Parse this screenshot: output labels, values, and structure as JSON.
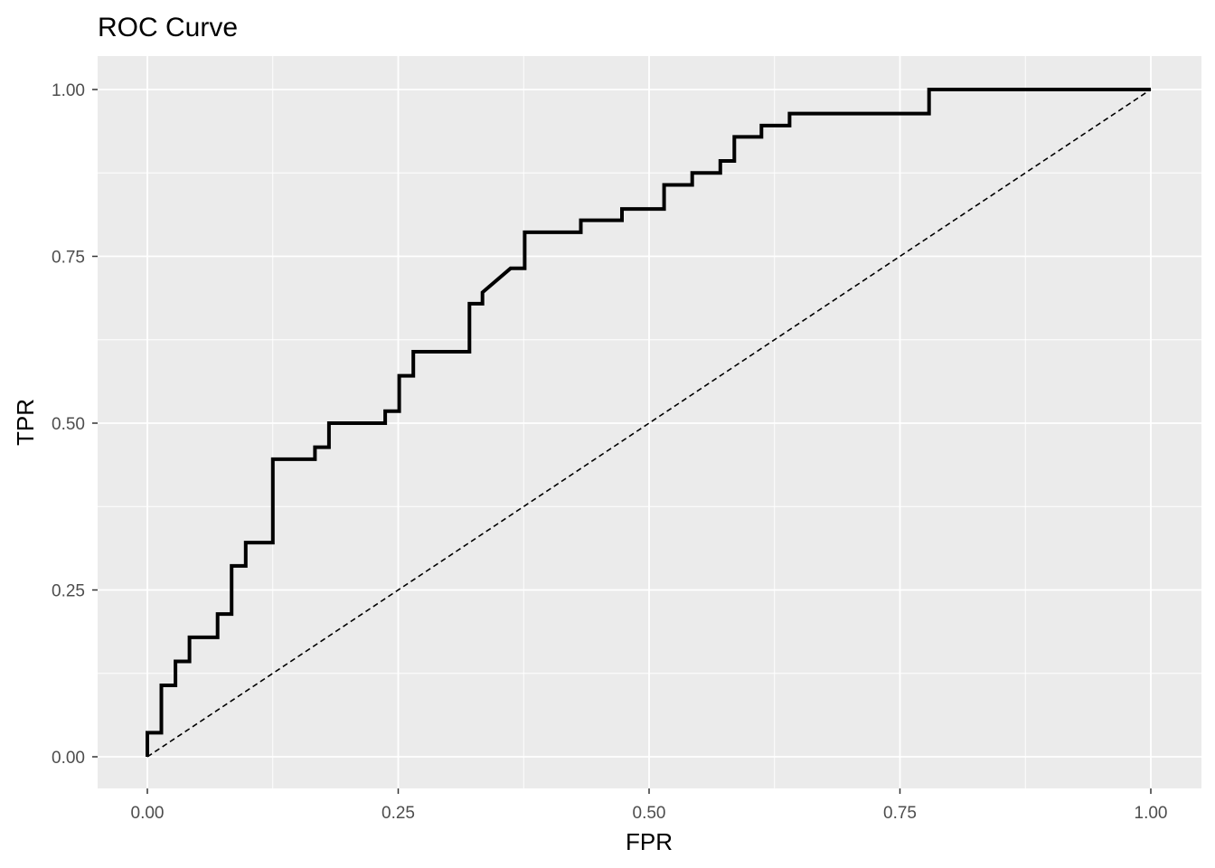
{
  "chart_data": {
    "type": "line",
    "title": "ROC Curve",
    "xlabel": "FPR",
    "ylabel": "TPR",
    "xlim": [
      0,
      1
    ],
    "ylim": [
      0,
      1
    ],
    "x_ticks": [
      0,
      0.25,
      0.5,
      0.75,
      1
    ],
    "y_ticks": [
      0,
      0.25,
      0.5,
      0.75,
      1
    ],
    "x_tick_labels": [
      "0.00",
      "0.25",
      "0.50",
      "0.75",
      "1.00"
    ],
    "y_tick_labels": [
      "0.00",
      "0.25",
      "0.50",
      "0.75",
      "1.00"
    ],
    "grid": true,
    "background": "#ebebeb",
    "grid_color": "#ffffff",
    "series": [
      {
        "style": "solid",
        "color": "#000000",
        "points": [
          [
            0.0,
            0.0
          ],
          [
            0.0,
            0.036
          ],
          [
            0.014,
            0.036
          ],
          [
            0.014,
            0.107
          ],
          [
            0.028,
            0.107
          ],
          [
            0.028,
            0.143
          ],
          [
            0.042,
            0.143
          ],
          [
            0.042,
            0.179
          ],
          [
            0.07,
            0.179
          ],
          [
            0.07,
            0.214
          ],
          [
            0.084,
            0.214
          ],
          [
            0.084,
            0.286
          ],
          [
            0.098,
            0.286
          ],
          [
            0.098,
            0.321
          ],
          [
            0.125,
            0.321
          ],
          [
            0.125,
            0.446
          ],
          [
            0.167,
            0.446
          ],
          [
            0.167,
            0.464
          ],
          [
            0.181,
            0.464
          ],
          [
            0.181,
            0.5
          ],
          [
            0.237,
            0.5
          ],
          [
            0.237,
            0.518
          ],
          [
            0.251,
            0.518
          ],
          [
            0.251,
            0.571
          ],
          [
            0.265,
            0.571
          ],
          [
            0.265,
            0.607
          ],
          [
            0.321,
            0.607
          ],
          [
            0.321,
            0.679
          ],
          [
            0.334,
            0.679
          ],
          [
            0.334,
            0.696
          ],
          [
            0.362,
            0.732
          ],
          [
            0.376,
            0.732
          ],
          [
            0.376,
            0.786
          ],
          [
            0.432,
            0.786
          ],
          [
            0.432,
            0.804
          ],
          [
            0.473,
            0.804
          ],
          [
            0.473,
            0.821
          ],
          [
            0.515,
            0.821
          ],
          [
            0.515,
            0.857
          ],
          [
            0.543,
            0.857
          ],
          [
            0.543,
            0.875
          ],
          [
            0.571,
            0.875
          ],
          [
            0.571,
            0.893
          ],
          [
            0.585,
            0.893
          ],
          [
            0.585,
            0.929
          ],
          [
            0.612,
            0.929
          ],
          [
            0.612,
            0.946
          ],
          [
            0.64,
            0.946
          ],
          [
            0.64,
            0.964
          ],
          [
            0.779,
            0.964
          ],
          [
            0.779,
            1.0
          ],
          [
            1.0,
            1.0
          ]
        ]
      },
      {
        "style": "dashed",
        "color": "#000000",
        "points": [
          [
            0,
            0
          ],
          [
            1,
            1
          ]
        ]
      }
    ]
  }
}
